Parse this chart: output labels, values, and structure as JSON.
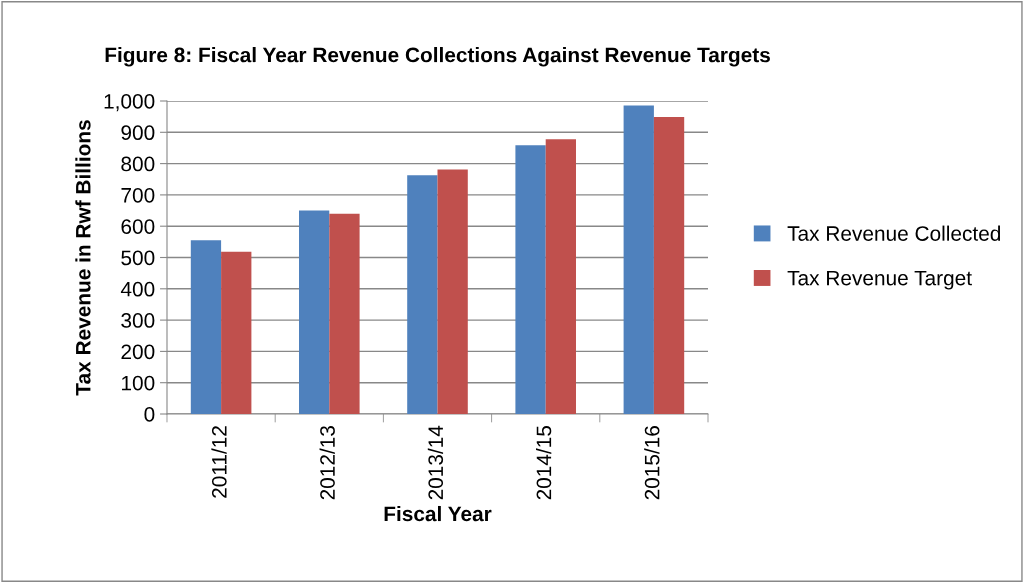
{
  "chart_data": {
    "type": "bar",
    "title": "Figure 8: Fiscal Year Revenue Collections Against Revenue Targets",
    "xlabel": "Fiscal Year",
    "ylabel": "Tax Revenue in Rwf Billions",
    "categories": [
      "2011/12",
      "2012/13",
      "2013/14",
      "2014/15",
      "2015/16"
    ],
    "series": [
      {
        "name": "Tax Revenue Collected",
        "color": "#4f81bd",
        "values": [
          555,
          650,
          763,
          859,
          986
        ]
      },
      {
        "name": "Tax Revenue Target",
        "color": "#c0504d",
        "values": [
          518,
          640,
          781,
          878,
          949
        ]
      }
    ],
    "ylim": [
      0,
      1000
    ],
    "yticks": [
      0,
      100,
      200,
      300,
      400,
      500,
      600,
      700,
      800,
      900,
      {
        "value": 1000,
        "label": "1,000"
      }
    ],
    "grid": "y",
    "legend": "right"
  }
}
